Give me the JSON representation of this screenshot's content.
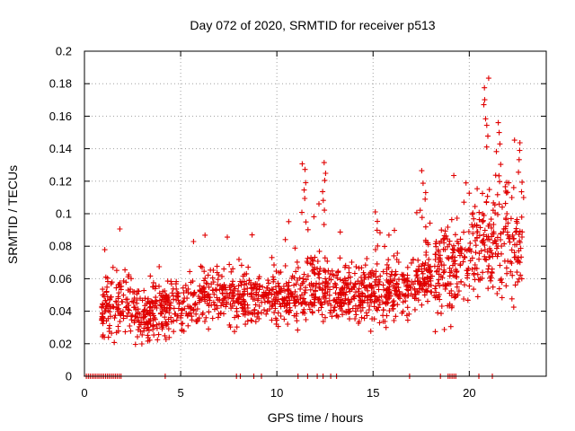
{
  "chart_data": {
    "type": "scatter",
    "title": "Day 072 of 2020, SRMTID for receiver p513",
    "xlabel": "GPS time / hours",
    "ylabel": "SRMTID / TECUs",
    "xlim": [
      0,
      24
    ],
    "ylim": [
      0,
      0.2
    ],
    "xticks": [
      0,
      5,
      10,
      15,
      20
    ],
    "yticks": [
      0,
      0.02,
      0.04,
      0.06,
      0.08,
      0.1,
      0.12,
      0.14,
      0.16,
      0.18,
      0.2
    ],
    "xtick_labels": [
      "0",
      "5",
      "10",
      "15",
      "20"
    ],
    "ytick_labels": [
      "0",
      "0.02",
      "0.04",
      "0.06",
      "0.08",
      "0.1",
      "0.12",
      "0.14",
      "0.16",
      "0.18",
      "0.2"
    ],
    "grid": true,
    "marker": "+",
    "color": "#e00000",
    "series": [
      {
        "name": "SRMTID",
        "trend_hours": [
          0,
          1,
          2,
          3,
          4,
          5,
          6,
          7,
          8,
          9,
          10,
          11,
          12,
          13,
          14,
          15,
          16,
          17,
          18,
          19,
          20,
          21,
          22,
          22.7
        ],
        "trend_median": [
          0,
          0.04,
          0.045,
          0.04,
          0.04,
          0.042,
          0.048,
          0.05,
          0.046,
          0.05,
          0.048,
          0.05,
          0.055,
          0.05,
          0.052,
          0.05,
          0.052,
          0.055,
          0.065,
          0.068,
          0.072,
          0.08,
          0.085,
          0.08
        ],
        "peaks": [
          {
            "x": 11.4,
            "y": 0.134
          },
          {
            "x": 12.5,
            "y": 0.133
          },
          {
            "x": 15.1,
            "y": 0.102
          },
          {
            "x": 17.6,
            "y": 0.128
          },
          {
            "x": 20.9,
            "y": 0.186
          },
          {
            "x": 21.5,
            "y": 0.157
          },
          {
            "x": 22.7,
            "y": 0.147
          }
        ],
        "zero_points_hours": [
          0.1,
          0.2,
          0.3,
          0.4,
          0.5,
          0.6,
          0.7,
          0.8,
          0.9,
          1.0,
          1.1,
          1.2,
          1.3,
          1.4,
          1.5,
          1.6,
          1.7,
          1.8,
          1.9,
          4.2,
          7.9,
          8.1,
          8.8,
          9.2,
          11.1,
          11.6,
          12.1,
          12.4,
          12.8,
          13.1,
          16.9,
          18.5,
          18.9,
          19.0,
          19.1,
          19.2,
          19.3,
          20.5,
          21.2
        ]
      }
    ]
  }
}
